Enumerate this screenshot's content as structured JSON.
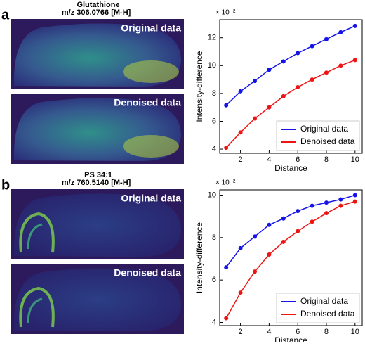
{
  "panels": [
    {
      "label": "a",
      "title": "Glutathione",
      "subtitle": "m/z 306.0766  [M-H]⁻",
      "image_labels": [
        "Original data",
        "Denoised data"
      ]
    },
    {
      "label": "b",
      "title": "PS 34:1",
      "subtitle": "m/z 760.5140  [M-H]⁻",
      "image_labels": [
        "Original data",
        "Denoised data"
      ]
    }
  ],
  "chart_data": [
    {
      "type": "line",
      "y_multiplier": "× 10⁻²",
      "x_label": "Distance",
      "y_label": "Intensity-difference",
      "x": [
        1,
        2,
        3,
        4,
        5,
        6,
        7,
        8,
        9,
        10
      ],
      "series": [
        {
          "name": "Original data",
          "color": "#1414e6",
          "values": [
            7.15,
            8.15,
            8.9,
            9.7,
            10.3,
            10.9,
            11.4,
            11.9,
            12.4,
            12.85
          ]
        },
        {
          "name": "Denoised data",
          "color": "#ee1414",
          "values": [
            4.1,
            5.2,
            6.2,
            7.0,
            7.8,
            8.45,
            9.0,
            9.5,
            10.0,
            10.4
          ]
        }
      ],
      "xlim": [
        0.55,
        10.5
      ],
      "xticks": [
        2,
        4,
        6,
        8,
        10
      ],
      "ylim": [
        3.7,
        13.3
      ],
      "yticks": [
        4,
        6,
        8,
        10,
        12
      ],
      "legend": "lower right"
    },
    {
      "type": "line",
      "y_multiplier": "× 10⁻²",
      "x_label": "Distance",
      "y_label": "Intensity-difference",
      "x": [
        1,
        2,
        3,
        4,
        5,
        6,
        7,
        8,
        9,
        10
      ],
      "series": [
        {
          "name": "Original data",
          "color": "#1414e6",
          "values": [
            6.6,
            7.5,
            8.05,
            8.6,
            8.9,
            9.25,
            9.5,
            9.65,
            9.8,
            10.0
          ]
        },
        {
          "name": "Denoised data",
          "color": "#ee1414",
          "values": [
            4.2,
            5.4,
            6.4,
            7.2,
            7.8,
            8.3,
            8.75,
            9.15,
            9.5,
            9.7
          ]
        }
      ],
      "xlim": [
        0.55,
        10.5
      ],
      "xticks": [
        2,
        4,
        6,
        8,
        10
      ],
      "ylim": [
        3.85,
        10.25
      ],
      "yticks": [
        4,
        6,
        8,
        10
      ],
      "legend": "lower right"
    }
  ]
}
